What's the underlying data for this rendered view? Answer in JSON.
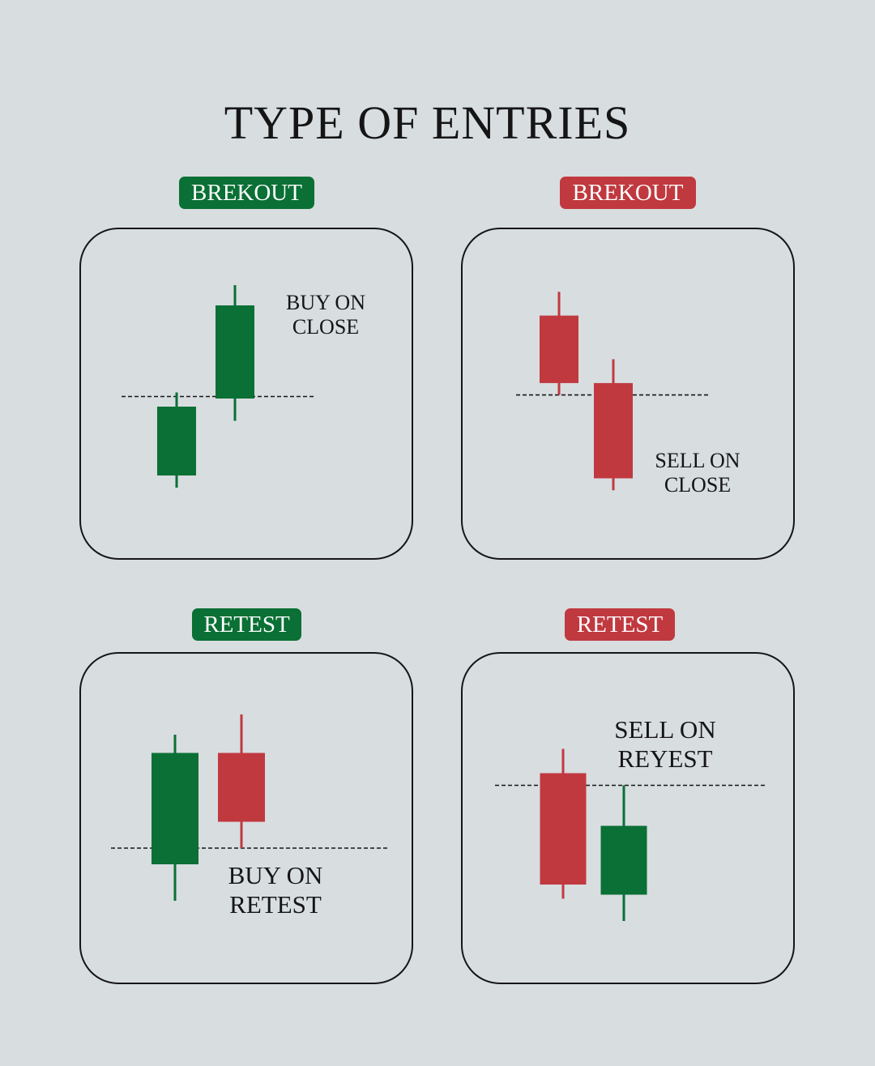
{
  "title": "TYPE OF ENTRIES",
  "colors": {
    "bull": "#0a7035",
    "bear": "#c0393f",
    "line": "#161616",
    "background": "#d8dde0"
  },
  "panels": [
    {
      "badge": "BREKOUT",
      "tone": "green",
      "caption": [
        "BUY ON",
        "CLOSE"
      ],
      "candles": [
        {
          "dir": "bull",
          "open": 2,
          "close": 3.7,
          "high": 4.05,
          "low": 1.7
        },
        {
          "dir": "bull",
          "open": 3.9,
          "close": 6.2,
          "high": 6.7,
          "low": 3.35
        }
      ],
      "level": 3.95
    },
    {
      "badge": "BREKOUT",
      "tone": "red",
      "caption": [
        "SELL ON",
        "CLOSE"
      ],
      "candles": [
        {
          "dir": "bear",
          "open": 6.6,
          "close": 4.9,
          "high": 7.2,
          "low": 4.6
        },
        {
          "dir": "bear",
          "open": 4.9,
          "close": 2.5,
          "high": 5.5,
          "low": 2.2
        }
      ],
      "level": 4.6
    },
    {
      "badge": "RETEST",
      "tone": "green",
      "caption": [
        "BUY ON",
        "RETEST"
      ],
      "candles": [
        {
          "dir": "bull",
          "open": 2.6,
          "close": 5.35,
          "high": 5.8,
          "low": 1.7
        },
        {
          "dir": "bear",
          "open": 5.35,
          "close": 3.65,
          "high": 6.3,
          "low": 3.0
        }
      ],
      "level": 3.0
    },
    {
      "badge": "RETEST",
      "tone": "red",
      "caption": [
        "SELL ON",
        "REYEST"
      ],
      "candles": [
        {
          "dir": "bear",
          "open": 5.75,
          "close": 3.0,
          "high": 6.35,
          "low": 2.65
        },
        {
          "dir": "bull",
          "open": 2.75,
          "close": 4.45,
          "high": 5.45,
          "low": 2.1
        }
      ],
      "level": 5.45
    }
  ]
}
